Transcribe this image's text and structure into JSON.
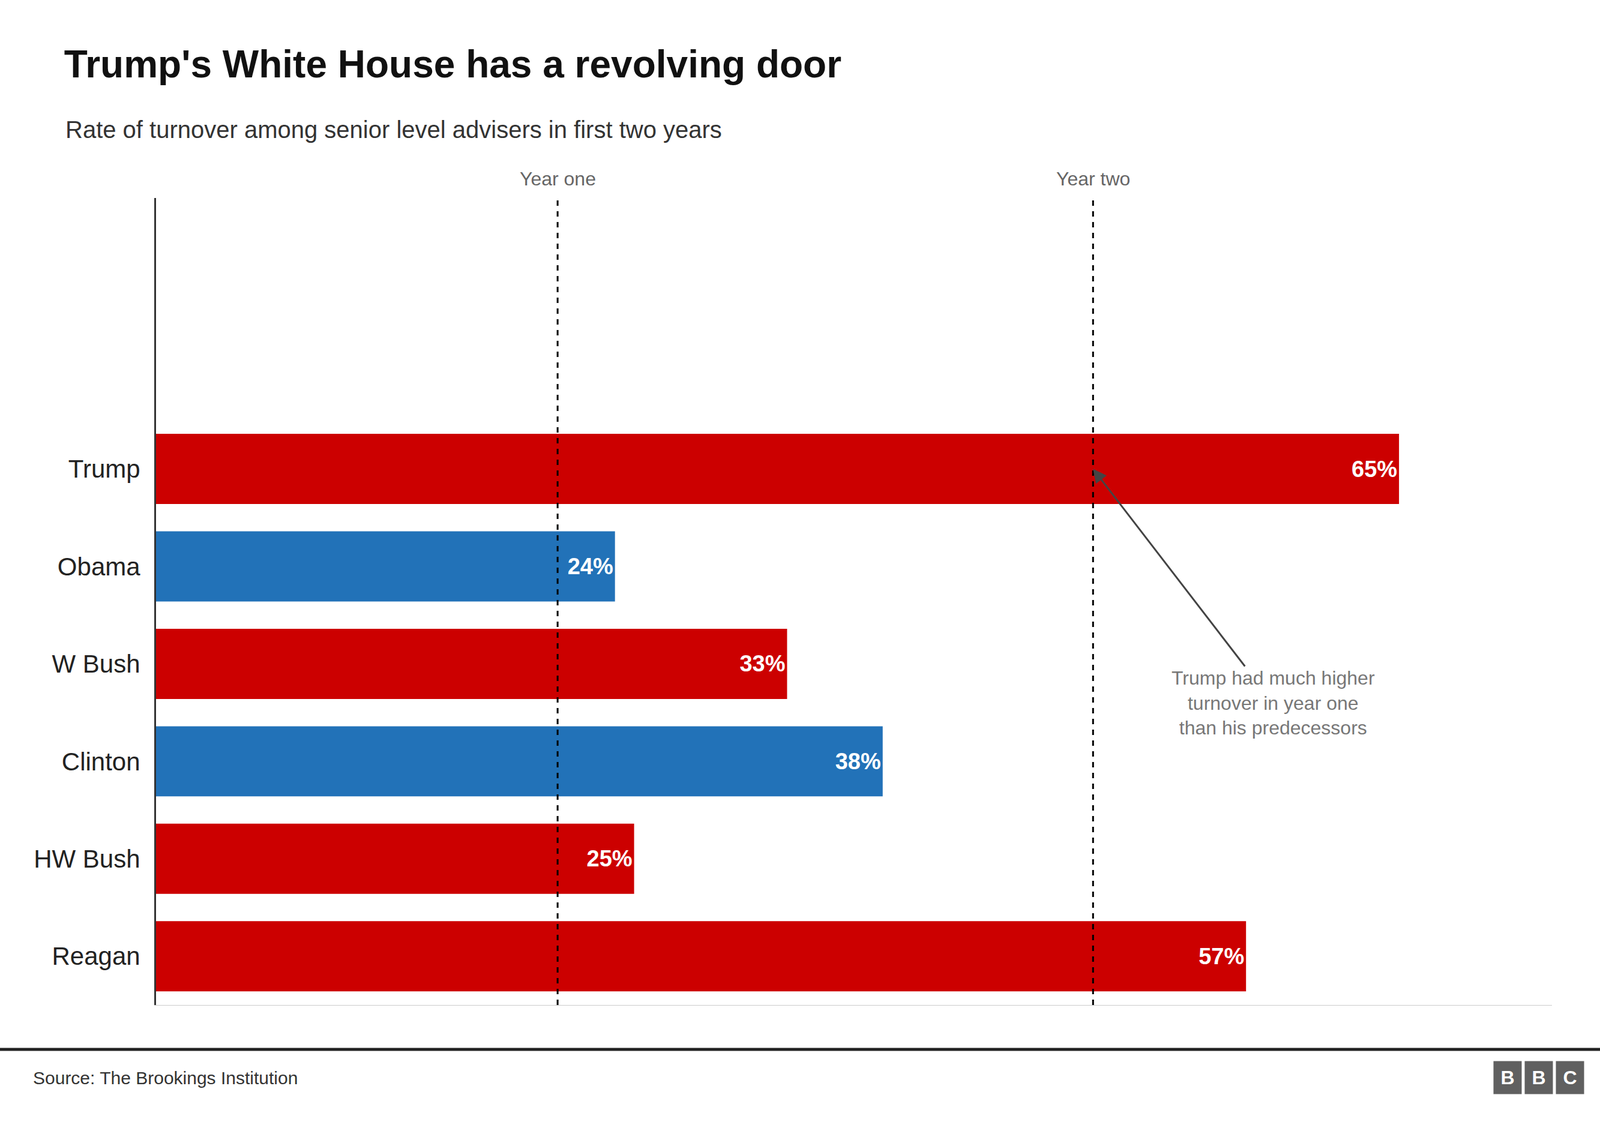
{
  "chart_data": {
    "type": "bar",
    "orientation": "horizontal",
    "title": "Trump's White House has a revolving door",
    "subtitle": "Rate of turnover among senior level advisers in first two years",
    "categories": [
      "Trump",
      "Obama",
      "W Bush",
      "Clinton",
      "HW Bush",
      "Reagan"
    ],
    "values": [
      65,
      24,
      33,
      38,
      25,
      57
    ],
    "value_labels": [
      "65%",
      "24%",
      "33%",
      "38%",
      "25%",
      "57%"
    ],
    "colors": [
      "#cc0000",
      "#2272b8",
      "#cc0000",
      "#2272b8",
      "#cc0000",
      "#cc0000"
    ],
    "data_labels": true,
    "xlim": [
      0,
      73
    ],
    "tick_labels": "y",
    "grid": false,
    "annotations": [
      {
        "text": "Year one",
        "x": 21,
        "line_style": "dashed"
      },
      {
        "text": "Year two",
        "x": 49,
        "line_style": "dashed"
      },
      {
        "text": "Trump had much higher\nturnover in year one\nthan his predecessors",
        "x": 49,
        "y": "Trump",
        "color": "#777777"
      }
    ],
    "source": "Source: The Brookings Institution",
    "logo": "BBC"
  }
}
